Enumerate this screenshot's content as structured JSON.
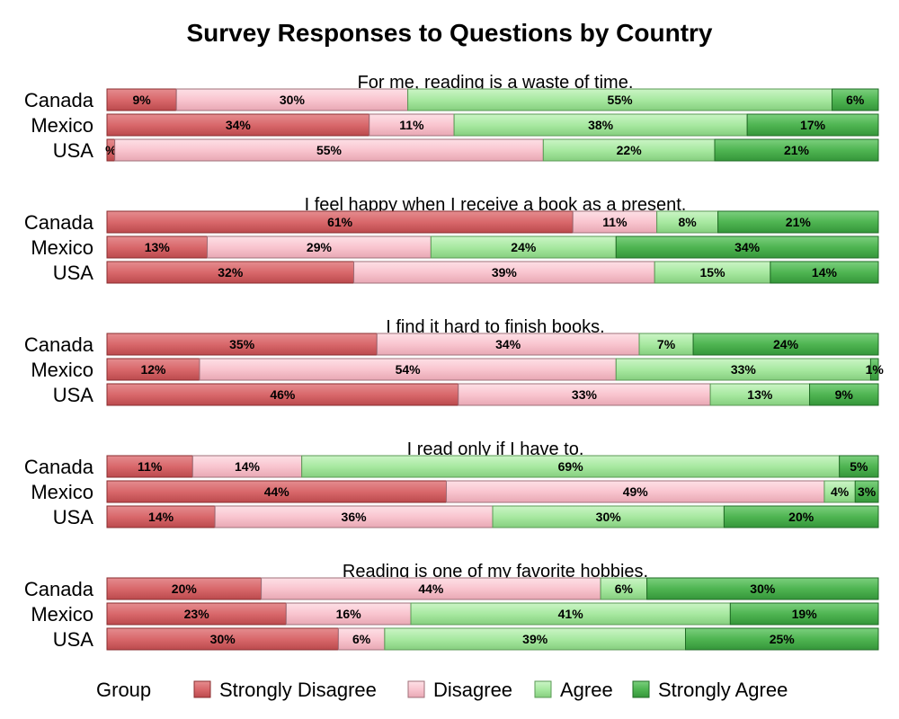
{
  "chart_data": {
    "type": "bar",
    "orientation": "horizontal",
    "stacked": true,
    "title": "Survey Responses to Questions by Country",
    "categories": [
      "Canada",
      "Mexico",
      "USA"
    ],
    "series_names": [
      "Strongly Disagree",
      "Disagree",
      "Agree",
      "Strongly Agree"
    ],
    "colors": [
      "#d9686b",
      "#f9c5cf",
      "#a8e9a1",
      "#4fb552"
    ],
    "xlim": [
      0,
      100
    ],
    "legend": {
      "title": "Group",
      "position": "bottom"
    },
    "panels": [
      {
        "question": "For me, reading is a waste of time.",
        "values": {
          "Canada": [
            9,
            30,
            55,
            6
          ],
          "Mexico": [
            34,
            11,
            38,
            17
          ],
          "USA": [
            1,
            55,
            22,
            21
          ]
        },
        "labels": {
          "Canada": [
            "9%",
            "30%",
            "55%",
            "6%"
          ],
          "Mexico": [
            "34%",
            "11%",
            "38%",
            "17%"
          ],
          "USA": [
            "%",
            "55%",
            "22%",
            "21%"
          ]
        }
      },
      {
        "question": "I feel happy when I receive a book as a present.",
        "values": {
          "Canada": [
            61,
            11,
            8,
            21
          ],
          "Mexico": [
            13,
            29,
            24,
            34
          ],
          "USA": [
            32,
            39,
            15,
            14
          ]
        },
        "labels": {
          "Canada": [
            "61%",
            "11%",
            "8%",
            "21%"
          ],
          "Mexico": [
            "13%",
            "29%",
            "24%",
            "34%"
          ],
          "USA": [
            "32%",
            "39%",
            "15%",
            "14%"
          ]
        }
      },
      {
        "question": "I find it hard to finish books.",
        "values": {
          "Canada": [
            35,
            34,
            7,
            24
          ],
          "Mexico": [
            12,
            54,
            33,
            1
          ],
          "USA": [
            46,
            33,
            13,
            9
          ]
        },
        "labels": {
          "Canada": [
            "35%",
            "34%",
            "7%",
            "24%"
          ],
          "Mexico": [
            "12%",
            "54%",
            "33%",
            "1%"
          ],
          "USA": [
            "46%",
            "33%",
            "13%",
            "9%"
          ]
        }
      },
      {
        "question": "I read only if I have to.",
        "values": {
          "Canada": [
            11,
            14,
            69,
            5
          ],
          "Mexico": [
            44,
            49,
            4,
            3
          ],
          "USA": [
            14,
            36,
            30,
            20
          ]
        },
        "labels": {
          "Canada": [
            "11%",
            "14%",
            "69%",
            "5%"
          ],
          "Mexico": [
            "44%",
            "49%",
            "4%",
            "3%"
          ],
          "USA": [
            "14%",
            "36%",
            "30%",
            "20%"
          ]
        }
      },
      {
        "question": "Reading is one of my favorite hobbies.",
        "values": {
          "Canada": [
            20,
            44,
            6,
            30
          ],
          "Mexico": [
            23,
            16,
            41,
            19
          ],
          "USA": [
            30,
            6,
            39,
            25
          ]
        },
        "labels": {
          "Canada": [
            "20%",
            "44%",
            "6%",
            "30%"
          ],
          "Mexico": [
            "23%",
            "16%",
            "41%",
            "19%"
          ],
          "USA": [
            "30%",
            "6%",
            "39%",
            "25%"
          ]
        }
      }
    ]
  }
}
